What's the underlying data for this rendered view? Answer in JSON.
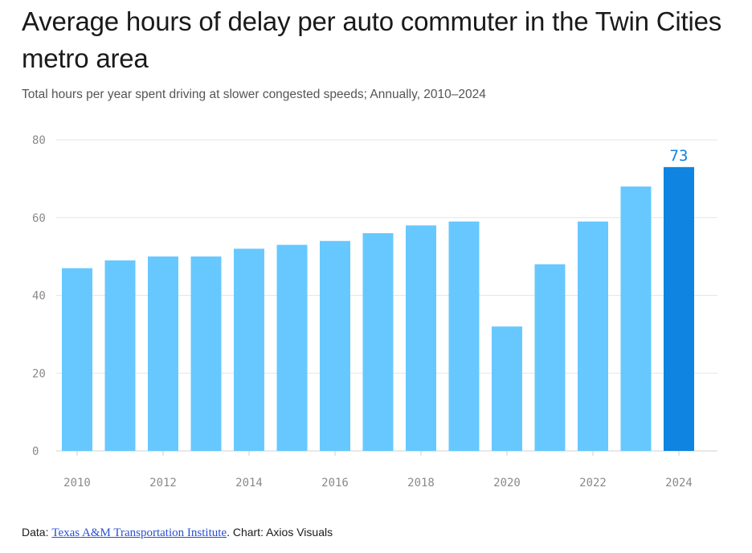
{
  "header": {
    "title": "Average hours of delay per auto commuter in the Twin Cities metro area",
    "subtitle": "Total hours per year spent driving at slower congested speeds; Annually, 2010–2024"
  },
  "footer": {
    "data_prefix": "Data: ",
    "source_link": "Texas A&M Transportation Institute",
    "credit": ". Chart: Axios Visuals"
  },
  "chart_data": {
    "type": "bar",
    "title": "Average hours of delay per auto commuter in the Twin Cities metro area",
    "subtitle": "Total hours per year spent driving at slower congested speeds; Annually, 2010–2024",
    "xlabel": "",
    "ylabel": "",
    "categories": [
      "2010",
      "2011",
      "2012",
      "2013",
      "2014",
      "2015",
      "2016",
      "2017",
      "2018",
      "2019",
      "2020",
      "2021",
      "2022",
      "2023",
      "2024"
    ],
    "values": [
      47,
      49,
      50,
      50,
      52,
      53,
      54,
      56,
      58,
      59,
      32,
      48,
      59,
      68,
      73
    ],
    "x_tick_labels": [
      "2010",
      "2012",
      "2014",
      "2016",
      "2018",
      "2020",
      "2022",
      "2024"
    ],
    "y_ticks": [
      0,
      20,
      40,
      60,
      80
    ],
    "ylim": [
      0,
      80
    ],
    "grid": true,
    "highlight": {
      "category": "2024",
      "label": "73"
    },
    "colors": {
      "bar": "#66c8ff",
      "highlight": "#0f84e0",
      "grid": "#e5e5e5",
      "tick": "#8a8a8a",
      "label": "#0f84e0"
    }
  }
}
